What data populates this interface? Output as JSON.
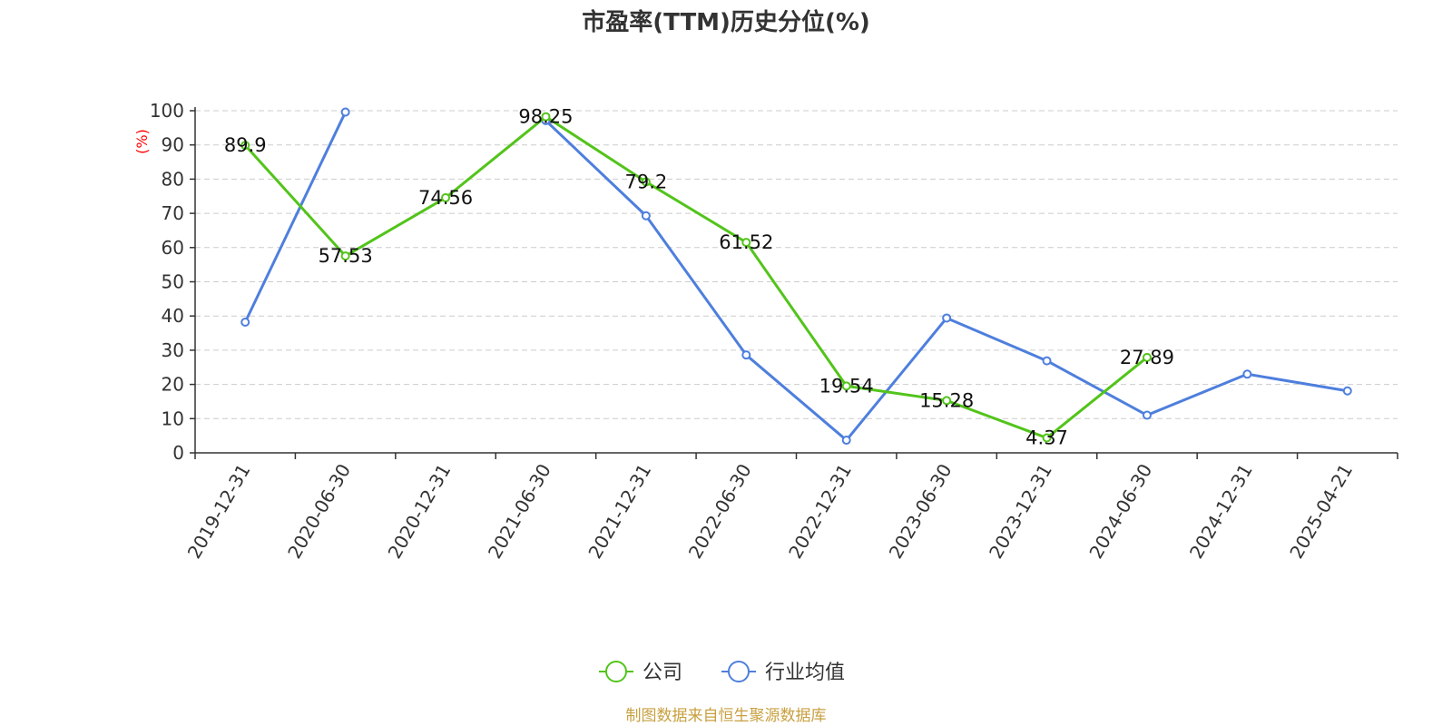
{
  "chart_data": {
    "type": "line",
    "title": "市盈率(TTM)历史分位(%)",
    "ylabel": "(%)",
    "ylim": [
      0,
      100
    ],
    "yticks": [
      0,
      10,
      20,
      30,
      40,
      50,
      60,
      70,
      80,
      90,
      100
    ],
    "grid": true,
    "legend_position": "bottom-center",
    "categories": [
      "2019-12-31",
      "2020-06-30",
      "2020-12-31",
      "2021-06-30",
      "2021-12-31",
      "2022-06-30",
      "2022-12-31",
      "2023-06-30",
      "2023-12-31",
      "2024-06-30",
      "2024-12-31",
      "2025-04-21"
    ],
    "series": [
      {
        "name": "公司",
        "color": "#52c41a",
        "show_labels": true,
        "values": [
          89.9,
          57.53,
          74.56,
          98.25,
          79.2,
          61.52,
          19.54,
          15.28,
          4.37,
          27.89,
          null,
          null
        ]
      },
      {
        "name": "行业均值",
        "color": "#4e7fdd",
        "show_labels": false,
        "values": [
          38.2,
          99.6,
          null,
          97.1,
          69.3,
          28.6,
          3.7,
          39.4,
          26.9,
          11.0,
          23.0,
          18.1
        ]
      }
    ]
  },
  "colors": {
    "axis": "#333333",
    "grid": "#cccccc",
    "unit_label": "#ff0000",
    "source_text": "#c8a040"
  },
  "source": "制图数据来自恒生聚源数据库"
}
